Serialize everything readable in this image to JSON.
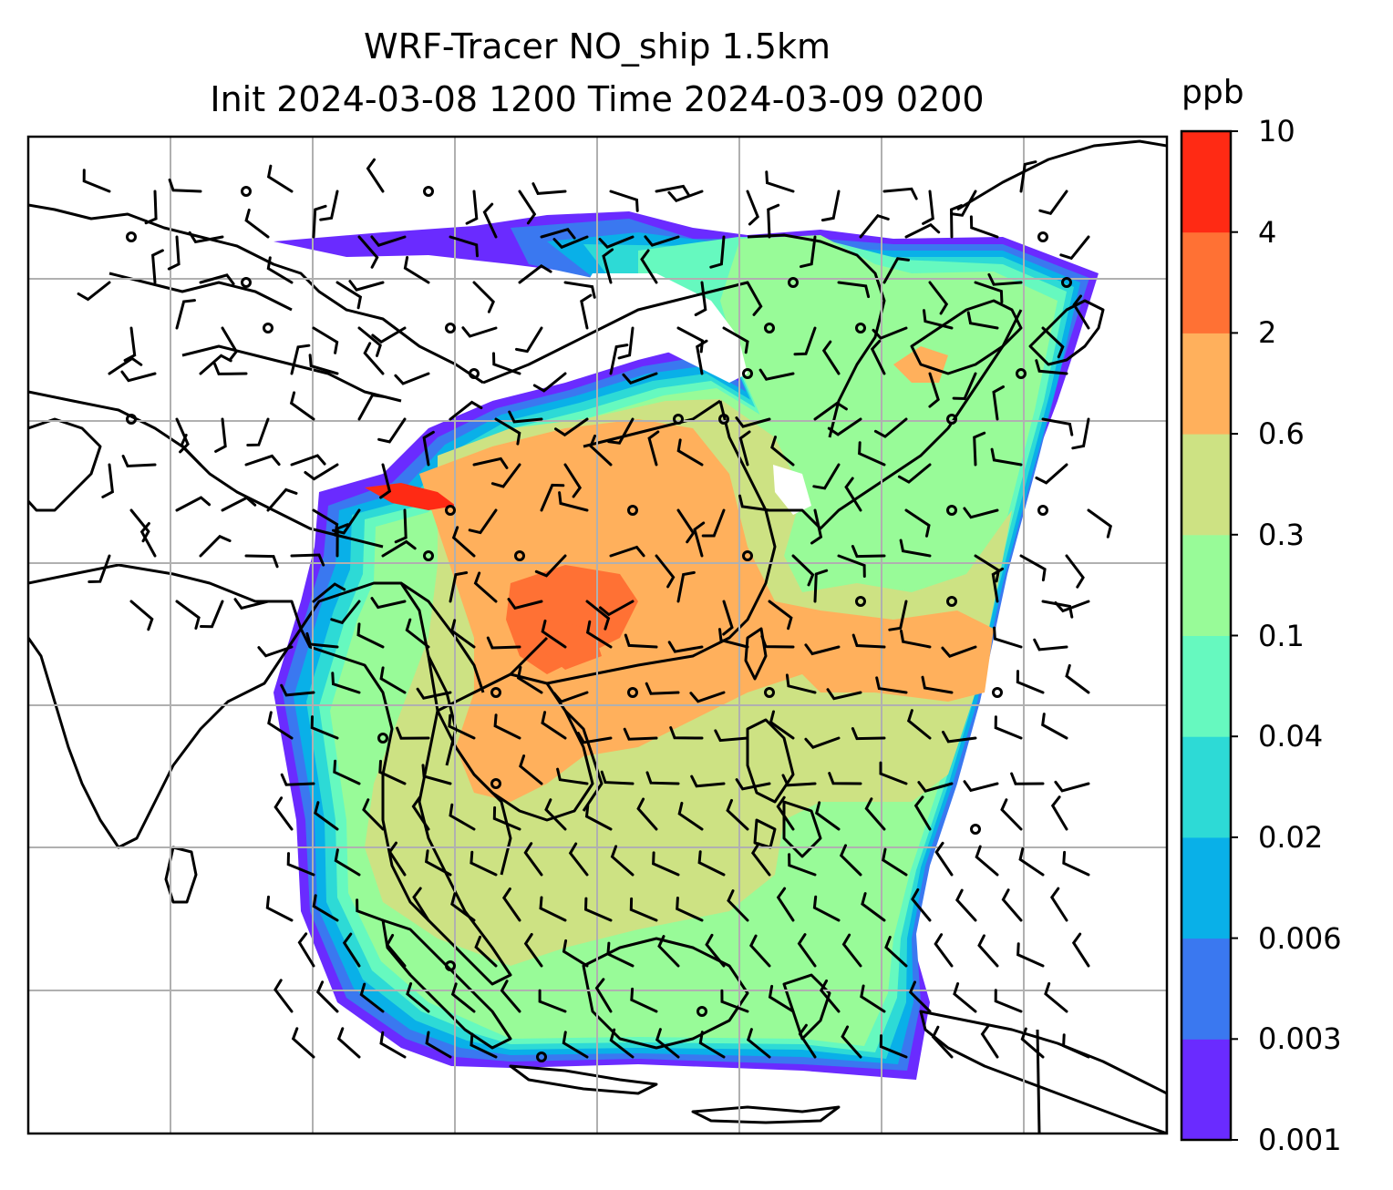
{
  "title": {
    "line1": "WRF-Tracer NO_ship 1.5km",
    "line2": "Init 2024-03-08 1200 Time 2024-03-09 0200"
  },
  "colorbar": {
    "unit": "ppb",
    "ticks": [
      "0.001",
      "0.003",
      "0.006",
      "0.02",
      "0.04",
      "0.1",
      "0.3",
      "0.6",
      "2",
      "4",
      "10"
    ],
    "colors": [
      "#6a2bff",
      "#3a78f0",
      "#09b0e8",
      "#2ddad6",
      "#66f9bf",
      "#98fb98",
      "#cde283",
      "#ffb05c",
      "#ff7134",
      "#ff2a14"
    ]
  },
  "map": {
    "gridlines": true,
    "features": [
      "coastlines",
      "country-borders",
      "wind-barbs",
      "tracer-concentration-fill"
    ]
  }
}
